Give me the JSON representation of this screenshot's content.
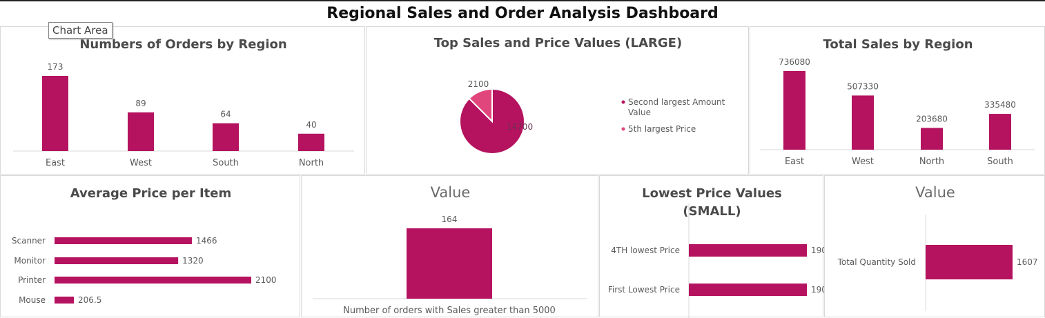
{
  "dashboard_title": "Regional Sales and Order Analysis Dashboard",
  "tooltip": "Chart Area",
  "colors": {
    "bar": "#b5125f",
    "pie_light": "#e0457b"
  },
  "chart_data": [
    {
      "id": "orders",
      "type": "bar",
      "title": "Numbers of Orders by Region",
      "categories": [
        "East",
        "West",
        "South",
        "North"
      ],
      "values": [
        173,
        89,
        64,
        40
      ]
    },
    {
      "id": "pie",
      "type": "pie",
      "title": "Top Sales and Price Values (LARGE)",
      "labels": [
        "Second largest Amount Value",
        "5th largest Price"
      ],
      "values": [
        14700,
        2100
      ]
    },
    {
      "id": "sales",
      "type": "bar",
      "title": "Total Sales by Region",
      "categories": [
        "East",
        "West",
        "North",
        "South"
      ],
      "values": [
        736080,
        507330,
        203680,
        335480
      ]
    },
    {
      "id": "avgprice",
      "type": "bar",
      "orientation": "horizontal",
      "title": "Average Price per Item",
      "categories": [
        "Scanner",
        "Monitor",
        "Printer",
        "Mouse"
      ],
      "values": [
        1466,
        1320,
        2100,
        206.5
      ]
    },
    {
      "id": "count",
      "type": "bar",
      "title": "Value",
      "categories": [
        "Number of orders with Sales greater than 5000"
      ],
      "values": [
        164
      ]
    },
    {
      "id": "lowest",
      "type": "bar",
      "orientation": "horizontal",
      "title": "Lowest Price Values",
      "title_line2": "(SMALL)",
      "categories": [
        "4TH lowest Price",
        "First Lowest Price"
      ],
      "values": [
        190,
        190
      ]
    },
    {
      "id": "qty",
      "type": "bar",
      "orientation": "horizontal",
      "title": "Value",
      "categories": [
        "Total Quantity Sold"
      ],
      "values": [
        1607
      ]
    }
  ]
}
